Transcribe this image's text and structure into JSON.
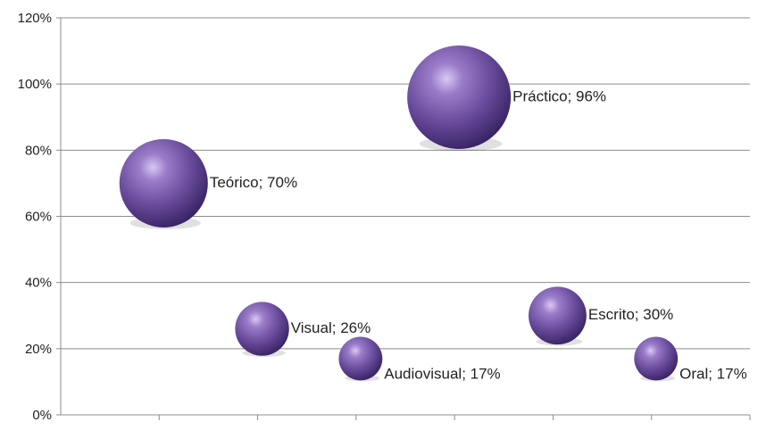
{
  "chart_data": {
    "type": "bubble",
    "title": "",
    "xlabel": "",
    "ylabel": "",
    "ylim": [
      0,
      1.2
    ],
    "y_ticks": [
      {
        "value": 0,
        "label": "0%"
      },
      {
        "value": 0.2,
        "label": "20%"
      },
      {
        "value": 0.4,
        "label": "40%"
      },
      {
        "value": 0.6,
        "label": "60%"
      },
      {
        "value": 0.8,
        "label": "80%"
      },
      {
        "value": 1.0,
        "label": "100%"
      },
      {
        "value": 1.2,
        "label": "120%"
      }
    ],
    "x_positions": 7,
    "grid": "horizontal",
    "bubble_color": "#6a4c9c",
    "points": [
      {
        "x": 1,
        "y": 0.7,
        "size": 0.7,
        "label": "Teórico; 70%"
      },
      {
        "x": 2,
        "y": 0.26,
        "size": 0.26,
        "label": "Visual; 26%"
      },
      {
        "x": 3,
        "y": 0.17,
        "size": 0.17,
        "label": "Audiovisual; 17%"
      },
      {
        "x": 4,
        "y": 0.96,
        "size": 0.96,
        "label": "Práctico; 96%"
      },
      {
        "x": 5,
        "y": 0.3,
        "size": 0.3,
        "label": "Escrito; 30%"
      },
      {
        "x": 6,
        "y": 0.17,
        "size": 0.17,
        "label": "Oral; 17%"
      }
    ]
  }
}
